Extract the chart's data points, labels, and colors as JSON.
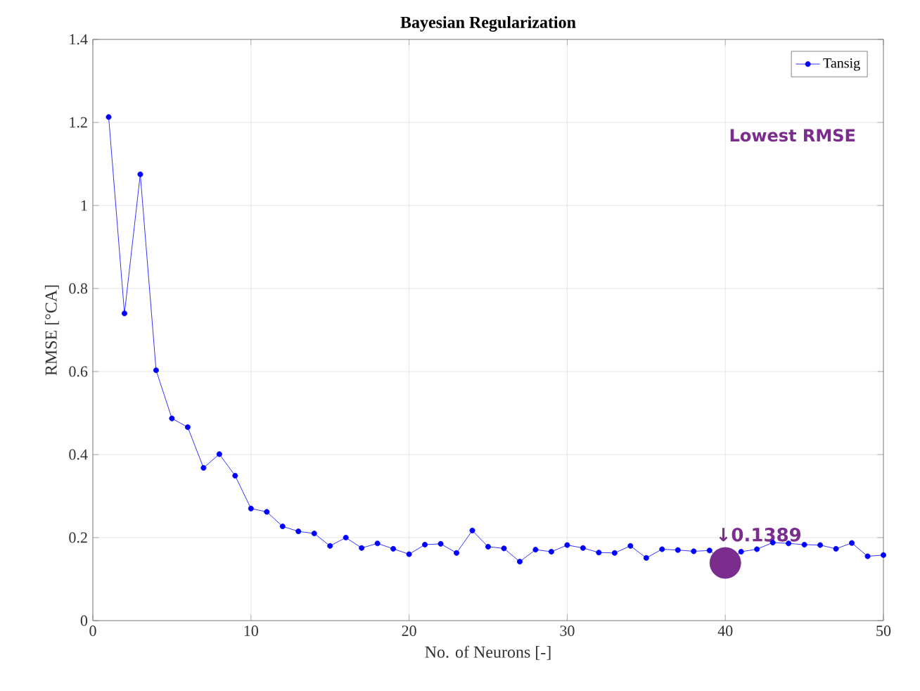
{
  "chart_data": {
    "type": "line",
    "title": "Bayesian Regularization",
    "xlabel": "No. of Neurons [-]",
    "ylabel": "RMSE [°CA]",
    "series": [
      {
        "name": "Tansig",
        "color": "#0000ff",
        "marker": "circle",
        "line_style": "solid",
        "x": [
          1,
          2,
          3,
          4,
          5,
          6,
          7,
          8,
          9,
          10,
          11,
          12,
          13,
          14,
          15,
          16,
          17,
          18,
          19,
          20,
          21,
          22,
          23,
          24,
          25,
          26,
          27,
          28,
          29,
          30,
          31,
          32,
          33,
          34,
          35,
          36,
          37,
          38,
          39,
          40,
          41,
          42,
          43,
          44,
          45,
          46,
          47,
          48,
          49,
          50
        ],
        "values": [
          1.213,
          0.74,
          1.075,
          0.603,
          0.487,
          0.466,
          0.368,
          0.401,
          0.349,
          0.27,
          0.262,
          0.227,
          0.215,
          0.21,
          0.18,
          0.2,
          0.175,
          0.186,
          0.173,
          0.16,
          0.183,
          0.185,
          0.163,
          0.217,
          0.178,
          0.174,
          0.142,
          0.171,
          0.166,
          0.182,
          0.175,
          0.164,
          0.163,
          0.18,
          0.151,
          0.172,
          0.17,
          0.167,
          0.169,
          0.1389,
          0.166,
          0.172,
          0.188,
          0.186,
          0.183,
          0.182,
          0.173,
          0.187,
          0.155,
          0.158
        ]
      },
      {
        "type": "scatter",
        "color": "#7b2d8e",
        "marker": "circle",
        "x": [
          40
        ],
        "values": [
          0.1389
        ]
      }
    ],
    "annotations": [
      "Lowest RMSE",
      {
        "text": "↓0.1389",
        "x": 40,
        "y": 0.1389
      }
    ],
    "xlim": [
      0,
      50
    ],
    "xticks": [
      0,
      10,
      20,
      30,
      40,
      50
    ],
    "ylim": [
      0,
      1.4
    ],
    "yticks": [
      0,
      0.2,
      0.4,
      0.6,
      0.8,
      1,
      1.2,
      1.4
    ],
    "grid": true,
    "legend": "top right"
  }
}
